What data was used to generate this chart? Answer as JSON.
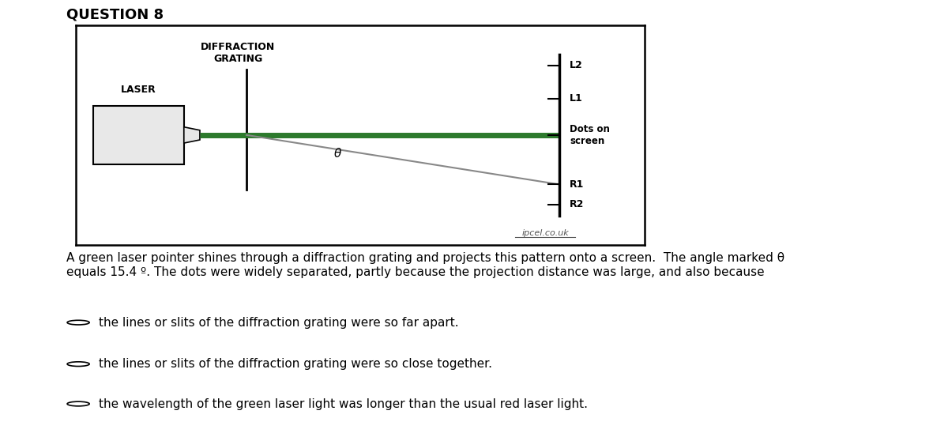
{
  "title": "QUESTION 8",
  "bg_color": "#ffffff",
  "diagram_border": "#000000",
  "green_color": "#2d7a2d",
  "laser_label": "LASER",
  "grating_label": "DIFFRACTION\nGRATING",
  "theta_label": "θ",
  "watermark": "ipcel.co.uk",
  "question_text": "A green laser pointer shines through a diffraction grating and projects this pattern onto a screen.  The angle marked θ\nequals 15.4 º. The dots were widely separated, partly because the projection distance was large, and also because",
  "options": [
    "the lines or slits of the diffraction grating were so far apart.",
    "the lines or slits of the diffraction grating were so close together.",
    "the wavelength of the green laser light was longer than the usual red laser light."
  ],
  "font_size_title": 13,
  "font_size_labels": 9,
  "font_size_text": 11
}
